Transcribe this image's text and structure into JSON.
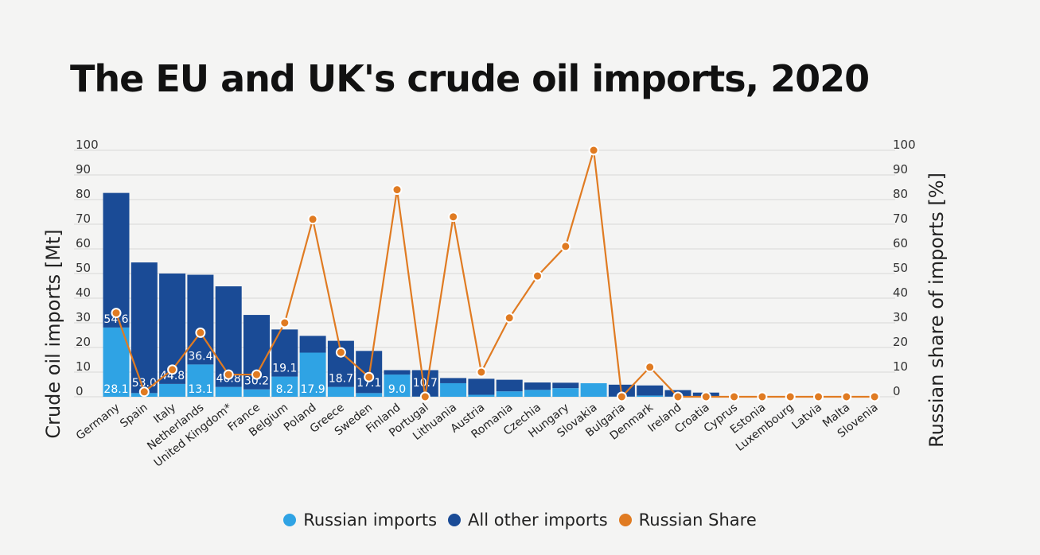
{
  "title": "The EU and UK's crude oil imports, 2020",
  "colors": {
    "russian": "#2fa3e4",
    "other": "#1a4b96",
    "share": "#e07b22",
    "grid": "#d7d7d7"
  },
  "chart_data": {
    "type": "bar",
    "stacked": true,
    "categories": [
      "Germany",
      "Spain",
      "Italy",
      "Netherlands",
      "United Kingdom*",
      "France",
      "Belgium",
      "Poland",
      "Greece",
      "Sweden",
      "Finland",
      "Portugal",
      "Lithuania",
      "Austria",
      "Romania",
      "Czechia",
      "Hungary",
      "Slovakia",
      "Bulgaria",
      "Denmark",
      "Ireland",
      "Croatia",
      "Cyprus",
      "Estonia",
      "Luxembourg",
      "Latvia",
      "Malta",
      "Slovenia"
    ],
    "series": [
      {
        "name": "Russian imports",
        "axis": "left",
        "values": [
          28.1,
          1.5,
          5.2,
          13.1,
          4.0,
          3.0,
          8.2,
          17.9,
          4.0,
          1.5,
          9.0,
          0.1,
          5.5,
          0.8,
          2.2,
          2.8,
          3.5,
          5.5,
          0.1,
          0.5,
          0.1,
          0.1,
          0,
          0,
          0,
          0,
          0,
          0
        ]
      },
      {
        "name": "All other imports",
        "axis": "left",
        "values": [
          54.6,
          53.0,
          44.8,
          36.4,
          40.8,
          30.2,
          19.1,
          6.8,
          18.7,
          17.1,
          1.8,
          10.7,
          2.1,
          6.5,
          4.7,
          3.0,
          2.2,
          0,
          4.8,
          4.1,
          2.6,
          1.6,
          0,
          0,
          0,
          0,
          0,
          0
        ]
      },
      {
        "name": "Russian Share",
        "axis": "right",
        "type": "line",
        "values": [
          34,
          2,
          11,
          26,
          9,
          9,
          30,
          72,
          18,
          8,
          84,
          0,
          73,
          10,
          32,
          49,
          61,
          100,
          0,
          12,
          0,
          0,
          0,
          0,
          0,
          0,
          0,
          0
        ]
      }
    ],
    "bar_labels": {
      "russian": [
        "28.1",
        "",
        "",
        "13.1",
        "",
        "",
        "8.2",
        "17.9",
        "",
        "",
        "9.0",
        "",
        "",
        "",
        "",
        "",
        "",
        "",
        "",
        "",
        "",
        "",
        "",
        "",
        "",
        "",
        "",
        ""
      ],
      "other": [
        "54.6",
        "53.0",
        "44.8",
        "36.4",
        "40.8",
        "30.2",
        "19.1",
        "",
        "18.7",
        "17.1",
        "",
        "10.7",
        "",
        "",
        "",
        "",
        "",
        "",
        "",
        "",
        "",
        "",
        "",
        "",
        "",
        "",
        "",
        ""
      ]
    },
    "ylabel": "Crude oil imports [Mt]",
    "y2label": "Russian share of imports [%]",
    "ylim": [
      0,
      100
    ],
    "y2lim": [
      0,
      100
    ],
    "yticks": [
      "0",
      "10",
      "20",
      "30",
      "40",
      "50",
      "60",
      "70",
      "80",
      "90",
      "100"
    ],
    "y2ticks": [
      "0",
      "10",
      "20",
      "30",
      "40",
      "50",
      "60",
      "70",
      "80",
      "90",
      "100"
    ],
    "grid": true,
    "legend": "bottom-center"
  },
  "legend": [
    {
      "label": "Russian imports",
      "color": "#2fa3e4"
    },
    {
      "label": "All other imports",
      "color": "#1a4b96"
    },
    {
      "label": "Russian Share",
      "color": "#e07b22"
    }
  ]
}
